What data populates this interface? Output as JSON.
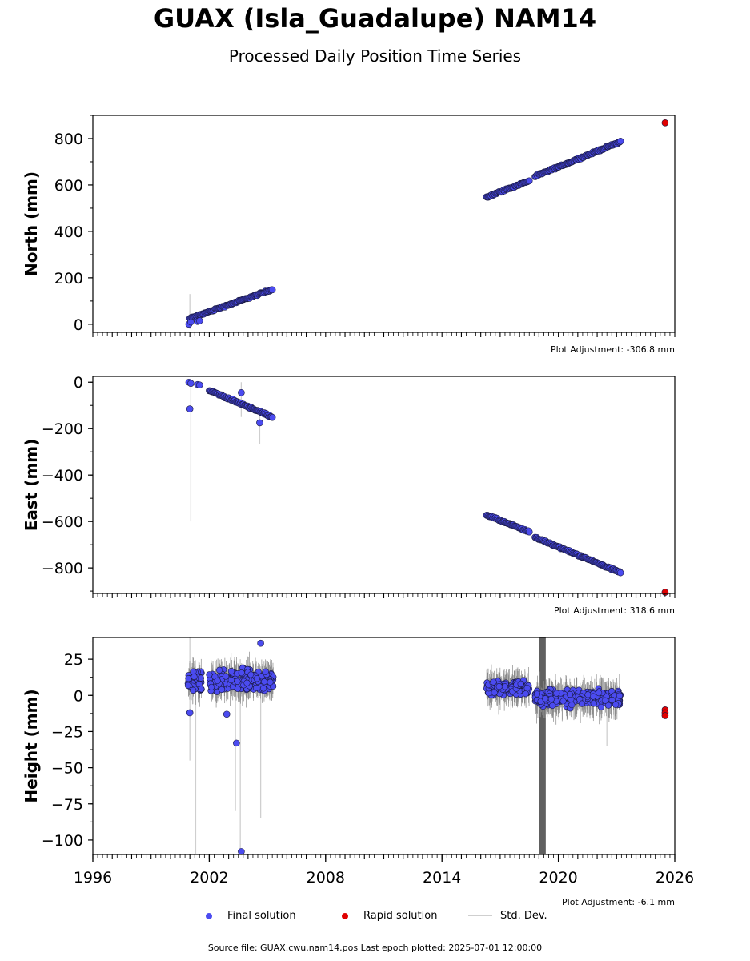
{
  "title": "GUAX (Isla_Guadalupe) NAM14",
  "subtitle": "Processed Daily Position Time Series",
  "colors": {
    "final": "#4b4bf0",
    "rapid": "#e00000",
    "std_dev": "#cfcfcf"
  },
  "legend": {
    "final": "Final solution",
    "rapid": "Rapid solution",
    "std_dev": "Std. Dev."
  },
  "source": "Source file: GUAX.cwu.nam14.pos  Last epoch plotted: 2025-07-01 12:00:00",
  "chart_data": [
    {
      "type": "scatter",
      "name": "north",
      "ylabel": "North (mm)",
      "xlim": [
        1996,
        2026
      ],
      "ylim": [
        -35,
        900
      ],
      "yticks": [
        0,
        200,
        400,
        600,
        800
      ],
      "ytick_labels": [
        "0",
        "200",
        "400",
        "600",
        "800"
      ],
      "xtick_labels": [],
      "adjustment": "Plot Adjustment: -306.8 mm",
      "final_segments": [
        {
          "x0": 2001.0,
          "x1": 2005.25,
          "y0": 25,
          "y1": 150
        },
        {
          "x0": 2016.3,
          "x1": 2018.5,
          "y0": 548,
          "y1": 618
        },
        {
          "x0": 2018.8,
          "x1": 2023.2,
          "y0": 637,
          "y1": 787
        }
      ],
      "final_points": [
        {
          "x": 2000.95,
          "y": 0
        },
        {
          "x": 2001.05,
          "y": 10
        },
        {
          "x": 2001.4,
          "y": 12
        },
        {
          "x": 2001.5,
          "y": 15
        }
      ],
      "rapid_points": [
        {
          "x": 2025.5,
          "y": 868
        }
      ],
      "stddev_bars": [
        {
          "x": 2001.0,
          "lo": -20,
          "hi": 130
        }
      ]
    },
    {
      "type": "scatter",
      "name": "east",
      "ylabel": "East (mm)",
      "xlim": [
        1996,
        2026
      ],
      "ylim": [
        -910,
        25
      ],
      "yticks": [
        0,
        -200,
        -400,
        -600,
        -800
      ],
      "ytick_labels": [
        "0",
        "−200",
        "−400",
        "−600",
        "−800"
      ],
      "xtick_labels": [],
      "adjustment": "Plot Adjustment: 318.6 mm",
      "final_segments": [
        {
          "x0": 2002.0,
          "x1": 2005.25,
          "y0": -35,
          "y1": -150
        },
        {
          "x0": 2016.3,
          "x1": 2018.5,
          "y0": -572,
          "y1": -645
        },
        {
          "x0": 2018.8,
          "x1": 2023.2,
          "y0": -668,
          "y1": -820
        }
      ],
      "final_points": [
        {
          "x": 2000.95,
          "y": 0
        },
        {
          "x": 2001.05,
          "y": -5
        },
        {
          "x": 2001.4,
          "y": -10
        },
        {
          "x": 2001.5,
          "y": -12
        },
        {
          "x": 2001.0,
          "y": -115
        },
        {
          "x": 2003.65,
          "y": -45
        },
        {
          "x": 2004.6,
          "y": -175
        }
      ],
      "rapid_points": [
        {
          "x": 2025.5,
          "y": -905
        }
      ],
      "stddev_bars": [
        {
          "x": 2001.05,
          "lo": -600,
          "hi": 10
        },
        {
          "x": 2004.6,
          "lo": -265,
          "hi": -110
        },
        {
          "x": 2003.65,
          "lo": -150,
          "hi": 0
        }
      ]
    },
    {
      "type": "scatter",
      "name": "height",
      "ylabel": "Height (mm)",
      "xlim": [
        1996,
        2026
      ],
      "ylim": [
        -110,
        40
      ],
      "yticks": [
        25,
        0,
        -25,
        -50,
        -75,
        -100
      ],
      "ytick_labels": [
        "25",
        "0",
        "−25",
        "−50",
        "−75",
        "−100"
      ],
      "xticks": [
        1996,
        2002,
        2008,
        2014,
        2020,
        2026
      ],
      "xtick_labels": [
        "1996",
        "2002",
        "2008",
        "2014",
        "2020",
        "2026"
      ],
      "adjustment": "Plot Adjustment: -6.1 mm",
      "final_clusters": [
        {
          "x0": 2000.9,
          "x1": 2001.6,
          "center": 10,
          "spread": 12
        },
        {
          "x0": 2002.0,
          "x1": 2005.3,
          "center": 10,
          "spread": 11
        },
        {
          "x0": 2016.3,
          "x1": 2018.5,
          "center": 5,
          "spread": 7
        },
        {
          "x0": 2018.8,
          "x1": 2023.2,
          "center": -2,
          "spread": 8
        }
      ],
      "final_points": [
        {
          "x": 2003.4,
          "y": -33
        },
        {
          "x": 2003.65,
          "y": -108
        },
        {
          "x": 2002.9,
          "y": -13
        },
        {
          "x": 2001.0,
          "y": -12
        },
        {
          "x": 2004.65,
          "y": 36
        }
      ],
      "rapid_points": [
        {
          "x": 2025.5,
          "y": -10
        },
        {
          "x": 2025.5,
          "y": -12
        },
        {
          "x": 2025.5,
          "y": -14
        }
      ],
      "stddev_bars": [
        {
          "x": 2001.0,
          "lo": -45,
          "hi": 40
        },
        {
          "x": 2001.3,
          "lo": -110,
          "hi": 15
        },
        {
          "x": 2003.35,
          "lo": -80,
          "hi": 20
        },
        {
          "x": 2003.6,
          "lo": -110,
          "hi": 25
        },
        {
          "x": 2004.65,
          "lo": -85,
          "hi": 20
        },
        {
          "x": 2022.5,
          "lo": -35,
          "hi": 10
        }
      ],
      "dense_band": {
        "x0": 2019.0,
        "x1": 2019.35,
        "lo": -110,
        "hi": 40
      }
    }
  ]
}
